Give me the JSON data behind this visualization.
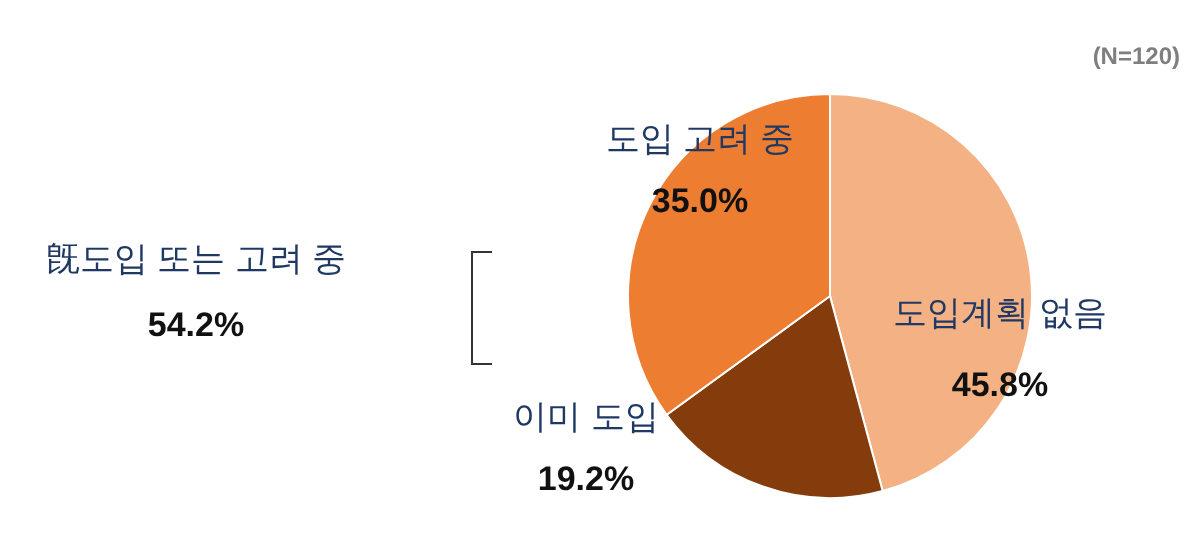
{
  "chart_data": {
    "type": "pie",
    "categories": [
      "도입계획 없음",
      "이미 도입",
      "도입 고려 중"
    ],
    "values": [
      45.8,
      19.2,
      35.0
    ],
    "colors": [
      "#f4b183",
      "#843c0c",
      "#ed7d31"
    ],
    "value_labels": [
      "45.8%",
      "19.2%",
      "35.0%"
    ],
    "annotations": [
      "(N=120)",
      "旣도입 또는 고려 중",
      "54.2%"
    ]
  }
}
